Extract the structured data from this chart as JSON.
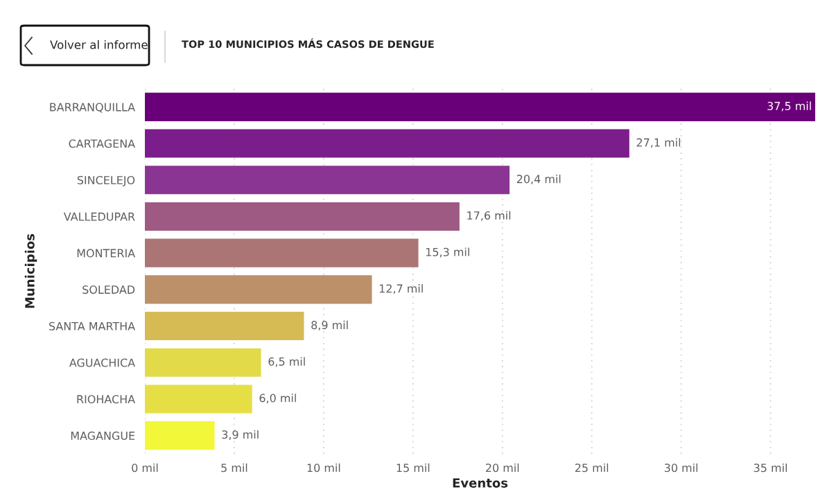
{
  "chart_data": {
    "type": "bar",
    "orientation": "horizontal",
    "title": "TOP 10 MUNICIPIOS MÁS CASOS DE DENGUE",
    "xlabel": "Eventos",
    "ylabel": "Municipios",
    "annotations": [
      "Volver al informe"
    ],
    "categories": [
      "BARRANQUILLA",
      "CARTAGENA",
      "SINCELEJO",
      "VALLEDUPAR",
      "MONTERIA",
      "SOLEDAD",
      "SANTA MARTHA",
      "AGUACHICA",
      "RIOHACHA",
      "MAGANGUE"
    ],
    "values": [
      37.5,
      27.1,
      20.4,
      17.6,
      15.3,
      12.7,
      8.9,
      6.5,
      6.0,
      3.9
    ],
    "value_labels": [
      "37,5 mil",
      "27,1 mil",
      "20,4 mil",
      "17,6 mil",
      "15,3 mil",
      "12,7 mil",
      "8,9 mil",
      "6,5 mil",
      "6,0 mil",
      "3,9 mil"
    ],
    "colors": [
      "#6a0079",
      "#7b1d8a",
      "#8a3593",
      "#9e5a83",
      "#ab7475",
      "#bc9068",
      "#d6bb55",
      "#e3da4a",
      "#e5df45",
      "#f2f73a"
    ],
    "xlim": [
      0,
      37.5
    ],
    "xticks": [
      {
        "value": 0,
        "label": "0 mil"
      },
      {
        "value": 5,
        "label": "5 mil"
      },
      {
        "value": 10,
        "label": "10 mil"
      },
      {
        "value": 15,
        "label": "15 mil"
      },
      {
        "value": 20,
        "label": "20 mil"
      },
      {
        "value": 25,
        "label": "25 mil"
      },
      {
        "value": 30,
        "label": "30 mil"
      },
      {
        "value": 35,
        "label": "35 mil"
      }
    ],
    "grid": "x"
  }
}
